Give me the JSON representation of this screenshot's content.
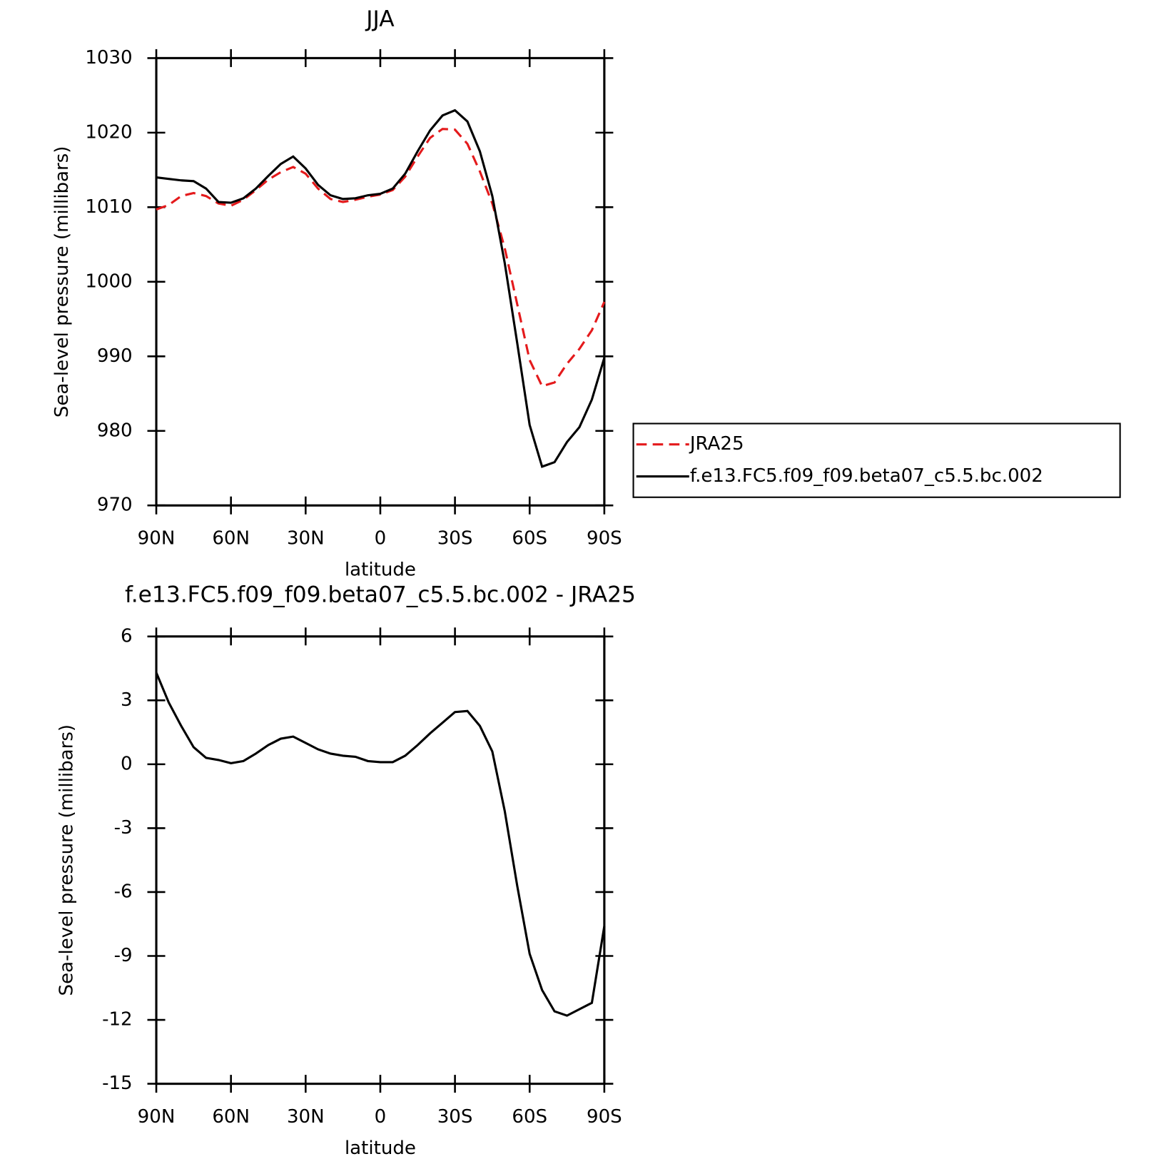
{
  "chart_data": [
    {
      "type": "line",
      "title": "JJA",
      "xlabel": "latitude",
      "ylabel": "Sea-level pressure (millibars)",
      "x": [
        90,
        85,
        80,
        75,
        70,
        65,
        60,
        55,
        50,
        45,
        40,
        35,
        30,
        25,
        20,
        15,
        10,
        5,
        0,
        -5,
        -10,
        -15,
        -20,
        -25,
        -30,
        -35,
        -40,
        -45,
        -50,
        -55,
        -60,
        -65,
        -70,
        -75,
        -80,
        -85,
        -90
      ],
      "xlim": [
        90,
        -90
      ],
      "xticks": [
        {
          "value": 90,
          "label": "90N"
        },
        {
          "value": 60,
          "label": "60N"
        },
        {
          "value": 30,
          "label": "30N"
        },
        0,
        {
          "value": -30,
          "label": "30S"
        },
        {
          "value": -60,
          "label": "60S"
        },
        {
          "value": -90,
          "label": "90S"
        }
      ],
      "ylim": [
        970,
        1030
      ],
      "yticks": [
        970,
        980,
        990,
        1000,
        1010,
        1020,
        1030
      ],
      "legend": "outside-right",
      "series": [
        {
          "name": "JRA25",
          "color": "#e41a1c",
          "dash": true,
          "values": [
            1009.7,
            1010.3,
            1011.5,
            1011.9,
            1011.5,
            1010.5,
            1010.2,
            1011.0,
            1012.3,
            1013.7,
            1014.7,
            1015.4,
            1014.5,
            1012.5,
            1011.1,
            1010.7,
            1011.0,
            1011.4,
            1011.7,
            1012.3,
            1014.1,
            1016.8,
            1019.3,
            1020.5,
            1020.4,
            1018.5,
            1014.8,
            1010.5,
            1004.5,
            997.0,
            989.5,
            986.0,
            986.5,
            989.0,
            991.0,
            993.5,
            997.3
          ]
        },
        {
          "name": "f.e13.FC5.f09_f09.beta07_c5.5.bc.002",
          "color": "#000000",
          "dash": false,
          "values": [
            1014.0,
            1013.8,
            1013.6,
            1013.5,
            1012.5,
            1010.7,
            1010.6,
            1011.2,
            1012.5,
            1014.2,
            1015.8,
            1016.8,
            1015.2,
            1013.0,
            1011.6,
            1011.1,
            1011.2,
            1011.6,
            1011.8,
            1012.5,
            1014.5,
            1017.5,
            1020.3,
            1022.3,
            1023.0,
            1021.5,
            1017.5,
            1011.5,
            1002.5,
            991.8,
            980.8,
            975.2,
            975.8,
            978.5,
            980.5,
            984.2,
            989.8
          ]
        }
      ]
    },
    {
      "type": "line",
      "title": "f.e13.FC5.f09_f09.beta07_c5.5.bc.002 - JRA25",
      "xlabel": "latitude",
      "ylabel": "Sea-level pressure (millibars)",
      "x": [
        90,
        85,
        80,
        75,
        70,
        65,
        60,
        55,
        50,
        45,
        40,
        35,
        30,
        25,
        20,
        15,
        10,
        5,
        0,
        -5,
        -10,
        -15,
        -20,
        -25,
        -30,
        -35,
        -40,
        -45,
        -50,
        -55,
        -60,
        -65,
        -70,
        -75,
        -80,
        -85,
        -90
      ],
      "xlim": [
        90,
        -90
      ],
      "xticks": [
        {
          "value": 90,
          "label": "90N"
        },
        {
          "value": 60,
          "label": "60N"
        },
        {
          "value": 30,
          "label": "30N"
        },
        0,
        {
          "value": -30,
          "label": "30S"
        },
        {
          "value": -60,
          "label": "60S"
        },
        {
          "value": -90,
          "label": "90S"
        }
      ],
      "ylim": [
        -15,
        6
      ],
      "yticks": [
        -15,
        -12,
        -9,
        -6,
        -3,
        0,
        3,
        6
      ],
      "color": "#000000",
      "values": [
        4.3,
        2.9,
        1.8,
        0.8,
        0.3,
        0.2,
        0.05,
        0.15,
        0.5,
        0.9,
        1.2,
        1.3,
        1.0,
        0.7,
        0.5,
        0.4,
        0.35,
        0.15,
        0.1,
        0.1,
        0.4,
        0.9,
        1.45,
        1.95,
        2.45,
        2.5,
        1.8,
        0.6,
        -2.2,
        -5.7,
        -8.9,
        -10.6,
        -11.6,
        -11.8,
        -11.5,
        -11.2,
        -7.6
      ]
    }
  ]
}
